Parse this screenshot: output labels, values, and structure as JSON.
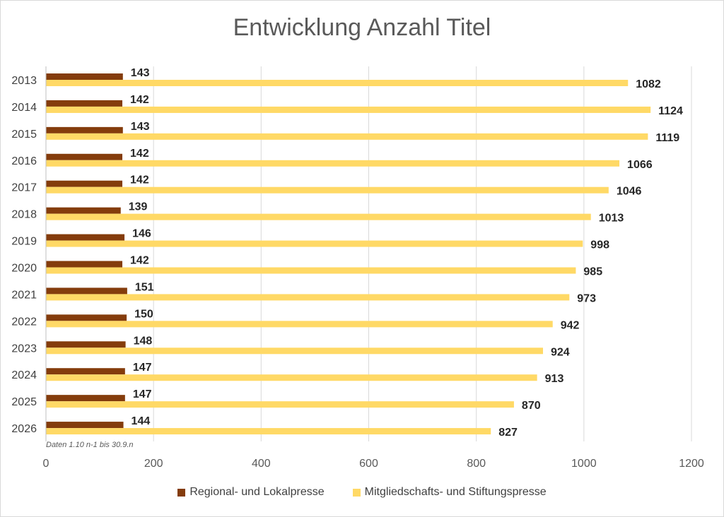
{
  "chart_data": {
    "type": "bar",
    "orientation": "horizontal",
    "title": "Entwicklung Anzahl Titel",
    "categories": [
      "2013",
      "2014",
      "2015",
      "2016",
      "2017",
      "2018",
      "2019",
      "2020",
      "2021",
      "2022",
      "2023",
      "2024",
      "2025",
      "2026"
    ],
    "series": [
      {
        "name": "Regional- und Lokalpresse",
        "color": "#843C0C",
        "values": [
          143,
          142,
          143,
          142,
          142,
          139,
          146,
          142,
          151,
          150,
          148,
          147,
          147,
          144
        ]
      },
      {
        "name": "Mitgliedschafts- und Stiftungspresse",
        "color": "#FFD966",
        "values": [
          1082,
          1124,
          1119,
          1066,
          1046,
          1013,
          998,
          985,
          973,
          942,
          924,
          913,
          870,
          827
        ]
      }
    ],
    "xlim": [
      0,
      1200
    ],
    "xticks": [
      "0",
      "200",
      "400",
      "600",
      "800",
      "1000",
      "1200"
    ],
    "grid": true,
    "legend_position": "bottom",
    "data_labels": true,
    "annotation": "Daten 1.10 n-1 bis 30.9.n"
  }
}
